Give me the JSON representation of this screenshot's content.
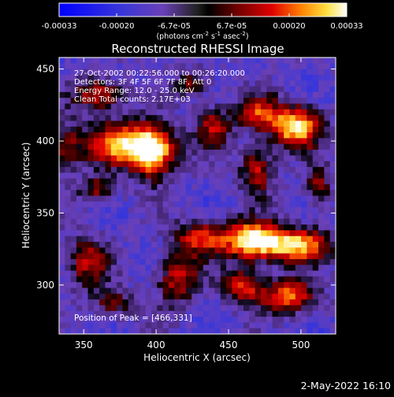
{
  "chart_data": {
    "type": "heatmap",
    "title": "Reconstructed RHESSI Image",
    "xlabel": "Heliocentric X (arcsec)",
    "ylabel": "Heliocentric Y (arcsec)",
    "xlim": [
      333,
      524
    ],
    "ylim": [
      266,
      458
    ],
    "xticks": [
      350,
      400,
      450,
      500
    ],
    "yticks": [
      300,
      350,
      400,
      450
    ],
    "colorbar": {
      "min": -0.00033,
      "max": 0.00033,
      "ticks": [
        "-0.00033",
        "-0.00020",
        "-6.7e-05",
        "6.7e-05",
        "0.00020",
        "0.00033"
      ],
      "unit_main": "(photons cm",
      "unit_exp1": "-2",
      "unit_mid1": " s",
      "unit_exp2": "-1",
      "unit_mid2": " asec",
      "unit_exp3": "-2",
      "unit_end": ")"
    },
    "annotations": [
      "27-Oct-2002 00:22:56.000 to 00:26:20.000",
      "Detectors: 3F 4F 5F 6F 7F 8F, Att 0",
      "Energy Range: 12.0 - 25.0 keV",
      "Clean     Total counts: 2.17E+03"
    ],
    "peak_label": "Position of Peak = [466,331]",
    "sources": [
      {
        "x": 466,
        "y": 331,
        "amp": 1.0,
        "sx": 14,
        "sy": 9
      },
      {
        "x": 497,
        "y": 328,
        "amp": 0.85,
        "sx": 16,
        "sy": 8
      },
      {
        "x": 430,
        "y": 333,
        "amp": 0.6,
        "sx": 12,
        "sy": 8
      },
      {
        "x": 380,
        "y": 398,
        "amp": 0.9,
        "sx": 20,
        "sy": 10
      },
      {
        "x": 398,
        "y": 390,
        "amp": 0.75,
        "sx": 10,
        "sy": 12
      },
      {
        "x": 496,
        "y": 410,
        "amp": 0.95,
        "sx": 12,
        "sy": 10
      },
      {
        "x": 470,
        "y": 420,
        "amp": 0.55,
        "sx": 10,
        "sy": 8
      },
      {
        "x": 360,
        "y": 432,
        "amp": 0.6,
        "sx": 12,
        "sy": 8
      },
      {
        "x": 440,
        "y": 410,
        "amp": 0.5,
        "sx": 9,
        "sy": 10
      },
      {
        "x": 470,
        "y": 380,
        "amp": 0.55,
        "sx": 8,
        "sy": 12
      },
      {
        "x": 492,
        "y": 292,
        "amp": 0.7,
        "sx": 14,
        "sy": 8
      },
      {
        "x": 460,
        "y": 300,
        "amp": 0.6,
        "sx": 10,
        "sy": 8
      },
      {
        "x": 415,
        "y": 305,
        "amp": 0.55,
        "sx": 10,
        "sy": 12
      },
      {
        "x": 352,
        "y": 316,
        "amp": 0.5,
        "sx": 10,
        "sy": 12
      },
      {
        "x": 360,
        "y": 366,
        "amp": 0.45,
        "sx": 9,
        "sy": 7
      },
      {
        "x": 425,
        "y": 440,
        "amp": 0.4,
        "sx": 8,
        "sy": 7
      },
      {
        "x": 370,
        "y": 287,
        "amp": 0.4,
        "sx": 10,
        "sy": 7
      },
      {
        "x": 512,
        "y": 368,
        "amp": 0.45,
        "sx": 6,
        "sy": 10
      },
      {
        "x": 338,
        "y": 395,
        "amp": 0.4,
        "sx": 6,
        "sy": 12
      }
    ]
  },
  "footer": {
    "timestamp": "2-May-2022 16:10"
  }
}
